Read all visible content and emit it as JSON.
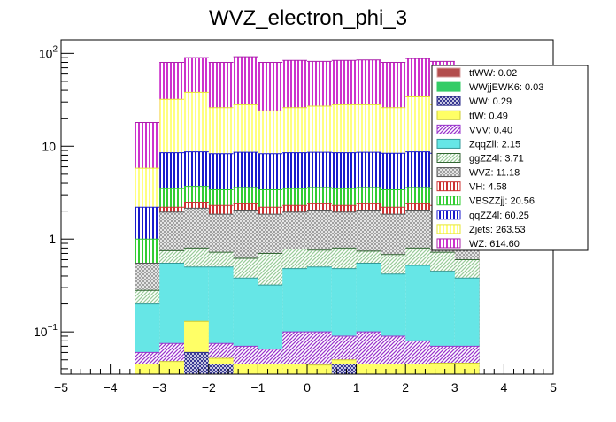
{
  "chart_data": {
    "type": "bar",
    "title": "WVZ_electron_phi_3",
    "xlabel": "",
    "ylabel": "",
    "xlim": [
      -5,
      5
    ],
    "ylog": true,
    "ylim": [
      0.035,
      140
    ],
    "bin_edges": [
      -3.5,
      -3.0,
      -2.5,
      -2.0,
      -1.5,
      -1.0,
      -0.5,
      0.0,
      0.5,
      1.0,
      1.5,
      2.0,
      2.5,
      3.0,
      3.5
    ],
    "x_ticks": [
      {
        "value": -5,
        "label": "−5"
      },
      {
        "value": -4,
        "label": "−4"
      },
      {
        "value": -3,
        "label": "−3"
      },
      {
        "value": -2,
        "label": "−2"
      },
      {
        "value": -1,
        "label": "−1"
      },
      {
        "value": 0,
        "label": "0"
      },
      {
        "value": 1,
        "label": "1"
      },
      {
        "value": 2,
        "label": "2"
      },
      {
        "value": 3,
        "label": "3"
      },
      {
        "value": 4,
        "label": "4"
      },
      {
        "value": 5,
        "label": "5"
      }
    ],
    "y_ticks": [
      {
        "value": 0.1,
        "base": "10",
        "exp": "−1"
      },
      {
        "value": 1,
        "base": "1",
        "exp": ""
      },
      {
        "value": 10,
        "base": "10",
        "exp": ""
      },
      {
        "value": 100,
        "base": "10",
        "exp": "2"
      }
    ],
    "legend_position": "top-right",
    "stack_order": [
      "ttWW",
      "WWjjEWK6",
      "WW",
      "ttW",
      "VVV",
      "ZqqZll",
      "ggZZ4l",
      "WVZ",
      "VH",
      "VBSZZjj",
      "qqZZ4l",
      "Zjets",
      "WZ"
    ],
    "stack_totals": {
      "WZ": [
        18,
        80,
        90,
        80,
        92,
        80,
        84,
        82,
        84,
        85,
        80,
        88,
        82,
        70
      ],
      "Zjets": [
        5.8,
        32,
        38,
        26,
        28,
        24,
        26,
        27,
        28,
        28,
        26,
        34,
        28,
        22
      ],
      "qqZZ4l": [
        2.2,
        8.5,
        8.7,
        8.3,
        8.6,
        8.3,
        8.5,
        8.6,
        8.5,
        8.6,
        8.4,
        8.7,
        8.4,
        7.6
      ],
      "VBSZZjj": [
        1.0,
        3.5,
        3.7,
        3.4,
        3.6,
        3.4,
        3.5,
        3.6,
        3.5,
        3.6,
        3.4,
        3.6,
        3.5,
        3.0
      ],
      "VH": [
        0.55,
        2.2,
        2.5,
        2.3,
        2.4,
        2.2,
        2.3,
        2.4,
        2.3,
        2.4,
        2.2,
        2.4,
        2.3,
        2.0
      ],
      "WVZ": [
        0.55,
        1.95,
        2.15,
        1.85,
        2.05,
        1.85,
        1.95,
        2.05,
        1.95,
        2.05,
        1.85,
        2.05,
        1.95,
        1.65
      ],
      "ggZZ4l": [
        0.28,
        0.75,
        0.8,
        0.72,
        0.62,
        0.7,
        0.78,
        0.76,
        0.8,
        0.74,
        0.68,
        0.8,
        0.72,
        0.6
      ],
      "ZqqZll": [
        0.2,
        0.55,
        0.5,
        0.5,
        0.38,
        0.32,
        0.48,
        0.5,
        0.48,
        0.55,
        0.42,
        0.52,
        0.45,
        0.38
      ],
      "VVV": [
        0.06,
        0.075,
        0.06,
        0.075,
        0.07,
        0.065,
        0.1,
        0.1,
        0.09,
        0.1,
        0.09,
        0.08,
        0.07,
        0.07
      ],
      "ttW": [
        0.045,
        0.048,
        0.13,
        0.052,
        0.045,
        0.045,
        0.045,
        0.044,
        0.05,
        0.045,
        0.045,
        0.045,
        0.046,
        0.046
      ],
      "WW": [
        0.0,
        0.0,
        0.06,
        0.045,
        0.0,
        0.0,
        0.0,
        0.0,
        0.045,
        0.0,
        0.0,
        0.0,
        0.0,
        0.0
      ],
      "WWjjEWK6": [
        0.0,
        0.0,
        0.0,
        0.0,
        0.0,
        0.0,
        0.0,
        0.0,
        0.0,
        0.0,
        0.0,
        0.0,
        0.0,
        0.0
      ],
      "ttWW": [
        0.0,
        0.0,
        0.0,
        0.0,
        0.0,
        0.0,
        0.0,
        0.0,
        0.0,
        0.0,
        0.0,
        0.0,
        0.0,
        0.0
      ]
    },
    "series": [
      {
        "name": "ttWW",
        "label": "ttWW: 0.02",
        "color": "#b34d4d",
        "pattern": "solid",
        "line": "#d9a0a0"
      },
      {
        "name": "WWjjEWK6",
        "label": "WWjjEWK6: 0.03",
        "color": "#33cc66",
        "pattern": "solid",
        "line": "#33cc66"
      },
      {
        "name": "WW",
        "label": "WW: 0.29",
        "color": "#2a2a8a",
        "pattern": "cross",
        "line": "#2a2a8a"
      },
      {
        "name": "ttW",
        "label": "ttW: 0.49",
        "color": "#ffff66",
        "pattern": "solid",
        "line": "#cccc33"
      },
      {
        "name": "VVV",
        "label": "VVV: 0.40",
        "color": "#9933cc",
        "pattern": "diag",
        "line": "#9933cc"
      },
      {
        "name": "ZqqZll",
        "label": "ZqqZll: 2.15",
        "color": "#66e6e6",
        "pattern": "solid",
        "line": "#339999"
      },
      {
        "name": "ggZZ4l",
        "label": "ggZZ4l: 3.71",
        "color": "#99cc99",
        "pattern": "diag",
        "line": "#336633"
      },
      {
        "name": "WVZ",
        "label": "WVZ: 11.18",
        "color": "#999999",
        "pattern": "cross",
        "line": "#555555"
      },
      {
        "name": "VH",
        "label": "VH: 4.58",
        "color": "#cc3333",
        "pattern": "vert",
        "line": "#cc3333"
      },
      {
        "name": "VBSZZjj",
        "label": "VBSZZjj: 20.56",
        "color": "#33cc33",
        "pattern": "vert",
        "line": "#33cc33"
      },
      {
        "name": "qqZZ4l",
        "label": "qqZZ4l: 60.25",
        "color": "#1a1acc",
        "pattern": "vert",
        "line": "#1a1acc"
      },
      {
        "name": "Zjets",
        "label": "Zjets: 263.53",
        "color": "#ffff80",
        "pattern": "vert",
        "line": "#e6e633"
      },
      {
        "name": "WZ",
        "label": "WZ: 614.60",
        "color": "#cc33cc",
        "pattern": "vert",
        "line": "#aa22aa"
      }
    ]
  }
}
